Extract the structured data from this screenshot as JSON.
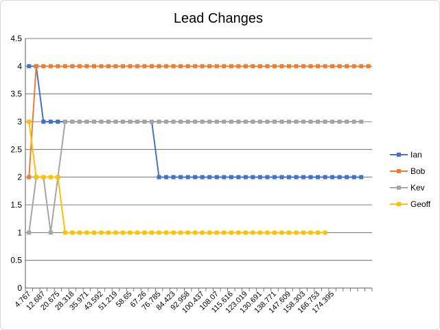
{
  "chart_data": {
    "type": "line",
    "title": "Lead Changes",
    "xlabel": "",
    "ylabel": "",
    "ylim": [
      0,
      4.5
    ],
    "y_ticks": [
      "0",
      "0.5",
      "1",
      "1.5",
      "2",
      "2.5",
      "3",
      "3.5",
      "4",
      "4.5"
    ],
    "x_tick_labels": [
      "4.767",
      "12.687",
      "20.675",
      "28.318",
      "35.971",
      "43.592",
      "51.219",
      "58.65",
      "67.26",
      "76.785",
      "84.423",
      "92.958",
      "100.437",
      "108.07",
      "115.616",
      "123.019",
      "130.691",
      "138.771",
      "147.609",
      "158.303",
      "166.753",
      "174.395"
    ],
    "x_tick_every": 2,
    "n_points": 48,
    "grid": "horizontal",
    "legend_position": "right",
    "series": [
      {
        "name": "Ian",
        "color": "#4472C4",
        "values": [
          4,
          4,
          3,
          3,
          3,
          3,
          3,
          3,
          3,
          3,
          3,
          3,
          3,
          3,
          3,
          3,
          3,
          3,
          2,
          2,
          2,
          2,
          2,
          2,
          2,
          2,
          2,
          2,
          2,
          2,
          2,
          2,
          2,
          2,
          2,
          2,
          2,
          2,
          2,
          2,
          2,
          2,
          2,
          2,
          2,
          2,
          2
        ]
      },
      {
        "name": "Bob",
        "color": "#ED7D31",
        "values": [
          2,
          4,
          4,
          4,
          4,
          4,
          4,
          4,
          4,
          4,
          4,
          4,
          4,
          4,
          4,
          4,
          4,
          4,
          4,
          4,
          4,
          4,
          4,
          4,
          4,
          4,
          4,
          4,
          4,
          4,
          4,
          4,
          4,
          4,
          4,
          4,
          4,
          4,
          4,
          4,
          4,
          4,
          4,
          4,
          4,
          4,
          4,
          4
        ]
      },
      {
        "name": "Kev",
        "color": "#A5A5A5",
        "values": [
          1,
          2,
          2,
          1,
          2,
          3,
          3,
          3,
          3,
          3,
          3,
          3,
          3,
          3,
          3,
          3,
          3,
          3,
          3,
          3,
          3,
          3,
          3,
          3,
          3,
          3,
          3,
          3,
          3,
          3,
          3,
          3,
          3,
          3,
          3,
          3,
          3,
          3,
          3,
          3,
          3,
          3,
          3,
          3,
          3,
          3,
          3
        ]
      },
      {
        "name": "Geoff",
        "color": "#FFC000",
        "values": [
          3,
          2,
          2,
          2,
          2,
          1,
          1,
          1,
          1,
          1,
          1,
          1,
          1,
          1,
          1,
          1,
          1,
          1,
          1,
          1,
          1,
          1,
          1,
          1,
          1,
          1,
          1,
          1,
          1,
          1,
          1,
          1,
          1,
          1,
          1,
          1,
          1,
          1,
          1,
          1,
          1,
          1
        ]
      }
    ]
  }
}
